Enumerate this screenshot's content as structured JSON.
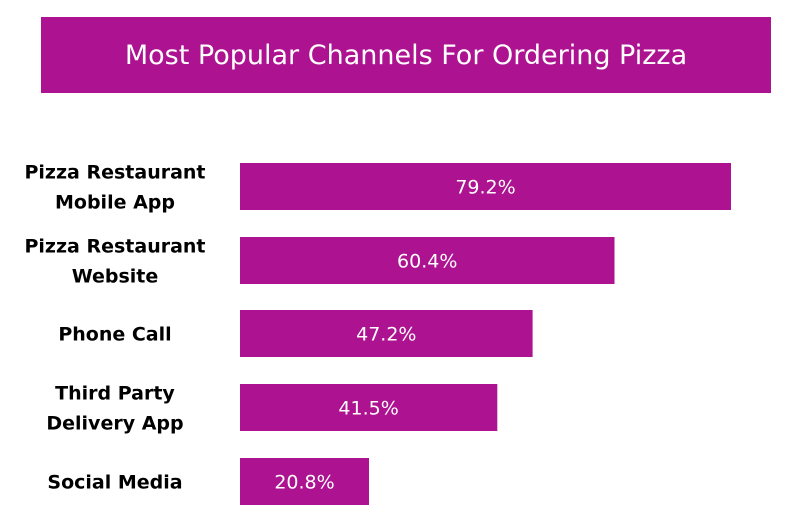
{
  "colors": {
    "accent": "#ad1390",
    "title_text": "#ffffff",
    "value_text": "#ffffff",
    "category_text": "#000000"
  },
  "chart_data": {
    "type": "bar",
    "orientation": "horizontal",
    "title": "Most Popular Channels For Ordering Pizza",
    "categories": [
      [
        "Pizza Restaurant",
        "Mobile App"
      ],
      [
        "Pizza Restaurant",
        "Website"
      ],
      [
        "Phone Call"
      ],
      [
        "Third Party",
        "Delivery App"
      ],
      [
        "Social Media"
      ]
    ],
    "values": [
      79.2,
      60.4,
      47.2,
      41.5,
      20.8
    ],
    "value_labels": [
      "79.2%",
      "60.4%",
      "47.2%",
      "41.5%",
      "20.8%"
    ],
    "unit": "%",
    "xlim": [
      0,
      100
    ],
    "grid": false,
    "legend": "none"
  }
}
